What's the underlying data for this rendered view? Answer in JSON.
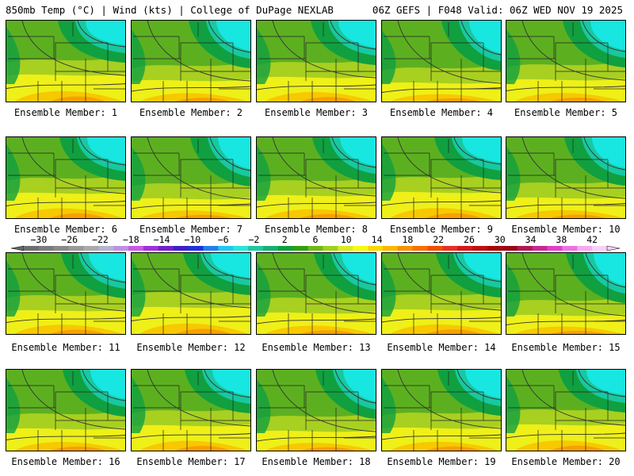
{
  "header": {
    "left_title": "850mb Temp (°C) | Wind (kts) | College of DuPage NEXLAB",
    "right_title": "06Z GEFS | F048 Valid: 06Z WED NOV 19 2025"
  },
  "panels": [
    {
      "label": "Ensemble Member: 1"
    },
    {
      "label": "Ensemble Member: 2"
    },
    {
      "label": "Ensemble Member: 3"
    },
    {
      "label": "Ensemble Member: 4"
    },
    {
      "label": "Ensemble Member: 5"
    },
    {
      "label": "Ensemble Member: 6"
    },
    {
      "label": "Ensemble Member: 7"
    },
    {
      "label": "Ensemble Member: 8"
    },
    {
      "label": "Ensemble Member: 9"
    },
    {
      "label": "Ensemble Member: 10"
    },
    {
      "label": "Ensemble Member: 11"
    },
    {
      "label": "Ensemble Member: 12"
    },
    {
      "label": "Ensemble Member: 13"
    },
    {
      "label": "Ensemble Member: 14"
    },
    {
      "label": "Ensemble Member: 15"
    },
    {
      "label": "Ensemble Member: 16"
    },
    {
      "label": "Ensemble Member: 17"
    },
    {
      "label": "Ensemble Member: 18"
    },
    {
      "label": "Ensemble Member: 19"
    },
    {
      "label": "Ensemble Member: 20"
    }
  ],
  "colorbar": {
    "tick_labels": [
      "−30",
      "−26",
      "−22",
      "−18",
      "−14",
      "−10",
      "−6",
      "−2",
      "2",
      "6",
      "10",
      "14",
      "18",
      "22",
      "26",
      "30",
      "34",
      "38",
      "42"
    ],
    "colors": [
      "#6e6e6e",
      "#7c7c7c",
      "#8a8a8a",
      "#9a9a9a",
      "#aaaaaa",
      "#b4b4d2",
      "#c090e0",
      "#c858e8",
      "#a030d8",
      "#7020c8",
      "#3c20c8",
      "#2030e0",
      "#2080f0",
      "#20c8f0",
      "#28e6d8",
      "#20c8a0",
      "#18b070",
      "#10a040",
      "#30a010",
      "#70b818",
      "#a0d020",
      "#d8ec20",
      "#f8f810",
      "#f8d800",
      "#f8b800",
      "#f89000",
      "#f87000",
      "#f05000",
      "#e83020",
      "#d81818",
      "#c01010",
      "#a80808",
      "#980818",
      "#b01850",
      "#c82890",
      "#e040c8",
      "#f070e0",
      "#f8a8f0",
      "#f8d0f8"
    ]
  },
  "map_colors": {
    "cold": "#18e6e0",
    "cool": "#18c8a0",
    "mid_green": "#10a040",
    "light_green": "#5cb020",
    "yellow_green": "#a8d020",
    "yellow": "#eef018",
    "orange_yellow": "#f8c800",
    "orange": "#f8a000"
  }
}
